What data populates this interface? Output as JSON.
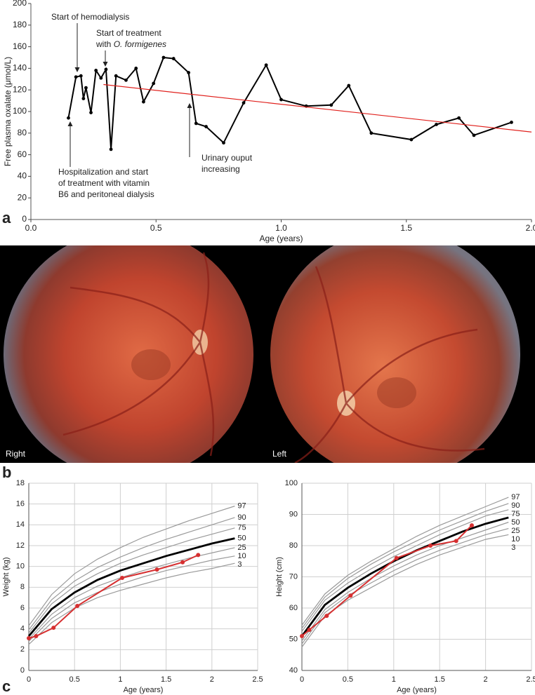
{
  "panel_labels": [
    "a",
    "b",
    "c"
  ],
  "photos": {
    "labels": [
      "Right",
      "Left"
    ]
  },
  "chart_data": [
    {
      "type": "line",
      "ylabel": "Free plasma oxalate (μmol/L)",
      "xlabel": "Age (years)",
      "xlim": [
        0,
        2
      ],
      "xticks": [
        {
          "value": 0,
          "label": "0.0"
        },
        {
          "value": 0.5,
          "label": "0.5"
        },
        {
          "value": 1,
          "label": "1.0"
        },
        {
          "value": 1.5,
          "label": "1.5"
        },
        {
          "value": 2,
          "label": "2.0"
        }
      ],
      "ylim": [
        0,
        200
      ],
      "yticks": [
        0,
        20,
        40,
        60,
        80,
        100,
        120,
        140,
        160,
        180,
        200
      ],
      "grid": false,
      "series": [
        {
          "color": "#000000",
          "markers": true,
          "x": [
            0.15,
            0.18,
            0.2,
            0.21,
            0.22,
            0.24,
            0.26,
            0.28,
            0.3,
            0.32,
            0.34,
            0.38,
            0.42,
            0.45,
            0.49,
            0.53,
            0.57,
            0.63,
            0.66,
            0.7,
            0.77,
            0.85,
            0.94,
            1.0,
            1.1,
            1.2,
            1.27,
            1.36,
            1.52,
            1.62,
            1.71,
            1.77,
            1.92
          ],
          "values": [
            94,
            132,
            133,
            112,
            122,
            99,
            138,
            131,
            139,
            65,
            133,
            129,
            140,
            109,
            126,
            150,
            149,
            136,
            89,
            86,
            71,
            108,
            143,
            111,
            105,
            106,
            124,
            80,
            74,
            88,
            94,
            78,
            90
          ]
        },
        {
          "color": "#e0201c",
          "markers": false,
          "x": [
            0.29,
            2.0
          ],
          "values": [
            125,
            81
          ]
        }
      ],
      "annotations": [
        {
          "lines": [
            "Start of hemodialysis"
          ]
        },
        {
          "lines": [
            "Start of treatment",
            "with",
            "O. formigenes"
          ]
        },
        {
          "lines": [
            "Urinary ouput",
            "increasing"
          ]
        },
        {
          "lines": [
            "Hospitalization and start",
            "of treatment with vitamin",
            "B6 and peritoneal dialysis"
          ]
        }
      ]
    },
    {
      "type": "line",
      "ylabel": "Weight (kg)",
      "xlabel": "Age (years)",
      "xlim": [
        0,
        2.5
      ],
      "xticks": [
        0,
        0.5,
        1,
        1.5,
        2,
        2.5
      ],
      "ylim": [
        0,
        18
      ],
      "yticks": [
        0,
        2,
        4,
        6,
        8,
        10,
        12,
        14,
        16,
        18
      ],
      "grid": true,
      "x": [
        0,
        0.25,
        0.5,
        0.75,
        1,
        1.25,
        1.5,
        1.75,
        2,
        2.25
      ],
      "series": [
        {
          "name": "97",
          "color": "#9a9a9a",
          "values": [
            4.3,
            7.3,
            9.3,
            10.7,
            11.8,
            12.8,
            13.6,
            14.4,
            15.1,
            15.8
          ]
        },
        {
          "name": "90",
          "color": "#9a9a9a",
          "values": [
            3.9,
            6.8,
            8.6,
            9.9,
            10.9,
            11.8,
            12.6,
            13.3,
            14.0,
            14.7
          ]
        },
        {
          "name": "75",
          "color": "#9a9a9a",
          "values": [
            3.6,
            6.4,
            8.1,
            9.3,
            10.3,
            11.1,
            11.8,
            12.5,
            13.1,
            13.7
          ]
        },
        {
          "name": "50",
          "color": "#000000",
          "values": [
            3.3,
            5.9,
            7.5,
            8.7,
            9.6,
            10.3,
            11.0,
            11.6,
            12.2,
            12.7
          ]
        },
        {
          "name": "25",
          "color": "#9a9a9a",
          "values": [
            3.0,
            5.4,
            7.0,
            8.1,
            8.9,
            9.6,
            10.2,
            10.8,
            11.3,
            11.8
          ]
        },
        {
          "name": "10",
          "color": "#9a9a9a",
          "values": [
            2.8,
            5.0,
            6.5,
            7.5,
            8.3,
            9.0,
            9.6,
            10.1,
            10.6,
            11.0
          ]
        },
        {
          "name": "3",
          "color": "#9a9a9a",
          "values": [
            2.5,
            4.6,
            6.0,
            7.0,
            7.7,
            8.3,
            8.9,
            9.4,
            9.8,
            10.3
          ]
        },
        {
          "color": "#d63031",
          "markers": true,
          "x": [
            0,
            0.08,
            0.27,
            0.53,
            1.02,
            1.4,
            1.68,
            1.85
          ],
          "values": [
            3.1,
            3.3,
            4.1,
            6.2,
            8.9,
            9.7,
            10.4,
            11.1
          ]
        }
      ]
    },
    {
      "type": "line",
      "ylabel": "Height (cm)",
      "xlabel": "Age (years)",
      "xlim": [
        0,
        2.5
      ],
      "xticks": [
        0,
        0.5,
        1,
        1.5,
        2,
        2.5
      ],
      "ylim": [
        40,
        100
      ],
      "yticks": [
        40,
        50,
        60,
        70,
        80,
        90,
        100
      ],
      "grid": true,
      "x": [
        0,
        0.25,
        0.5,
        0.75,
        1,
        1.25,
        1.5,
        1.75,
        2,
        2.25
      ],
      "series": [
        {
          "name": "97",
          "color": "#9a9a9a",
          "values": [
            54.5,
            64.5,
            70.5,
            75,
            79,
            83,
            86.5,
            89.5,
            92.5,
            95.5
          ]
        },
        {
          "name": "90",
          "color": "#9a9a9a",
          "values": [
            53.5,
            63.5,
            69.5,
            74,
            78,
            81.5,
            85,
            88,
            91,
            93.5
          ]
        },
        {
          "name": "75",
          "color": "#9a9a9a",
          "values": [
            52.5,
            62.5,
            68,
            72.5,
            76.5,
            80,
            83.5,
            86.5,
            89.5,
            91.5
          ]
        },
        {
          "name": "50",
          "color": "#000000",
          "values": [
            51,
            61,
            66.5,
            71,
            75,
            78.5,
            81.5,
            84.5,
            87,
            89
          ]
        },
        {
          "name": "25",
          "color": "#9a9a9a",
          "values": [
            49.5,
            59.5,
            65,
            69.5,
            73.5,
            77,
            80,
            82.5,
            85,
            87.5
          ]
        },
        {
          "name": "10",
          "color": "#9a9a9a",
          "values": [
            48.5,
            58.5,
            64,
            68,
            72,
            75.5,
            78.5,
            81,
            83.5,
            85.5
          ]
        },
        {
          "name": "3",
          "color": "#9a9a9a",
          "values": [
            47.5,
            57.5,
            62.5,
            66.5,
            70.5,
            74,
            77,
            79.5,
            82,
            83.5
          ]
        },
        {
          "color": "#d63031",
          "markers": true,
          "x": [
            0,
            0.08,
            0.27,
            0.53,
            1.03,
            1.4,
            1.68,
            1.85
          ],
          "values": [
            51,
            53,
            57.5,
            64,
            76,
            80,
            81.5,
            86.5
          ]
        }
      ]
    }
  ]
}
